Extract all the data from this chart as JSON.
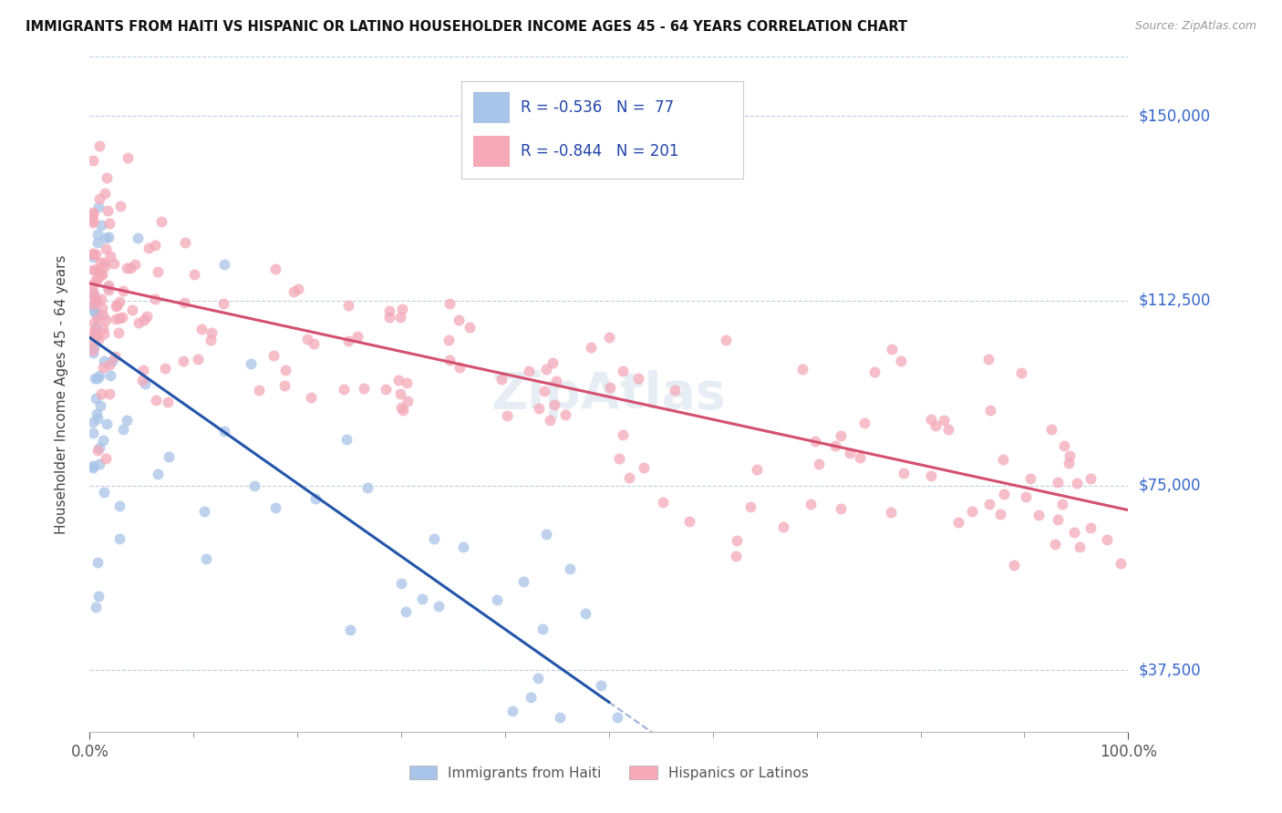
{
  "title": "IMMIGRANTS FROM HAITI VS HISPANIC OR LATINO HOUSEHOLDER INCOME AGES 45 - 64 YEARS CORRELATION CHART",
  "source": "Source: ZipAtlas.com",
  "ylabel": "Householder Income Ages 45 - 64 years",
  "legend1_R": "-0.536",
  "legend1_N": "77",
  "legend2_R": "-0.844",
  "legend2_N": "201",
  "xmin": 0.0,
  "xmax": 100.0,
  "ymin": 25000,
  "ymax": 162000,
  "yticks": [
    37500,
    75000,
    112500,
    150000
  ],
  "ytick_labels": [
    "$37,500",
    "$75,000",
    "$112,500",
    "$150,000"
  ],
  "color_haiti": "#a8c4e8",
  "color_hispanic": "#f4a8b8",
  "line_color_haiti": "#2255aa",
  "line_color_hispanic": "#d45070",
  "haiti_line_x0": 0,
  "haiti_line_y0": 105000,
  "haiti_line_x1": 50,
  "haiti_line_y1": 31000,
  "hisp_line_x0": 0,
  "hisp_line_y0": 116000,
  "hisp_line_x1": 100,
  "hisp_line_y1": 70000
}
